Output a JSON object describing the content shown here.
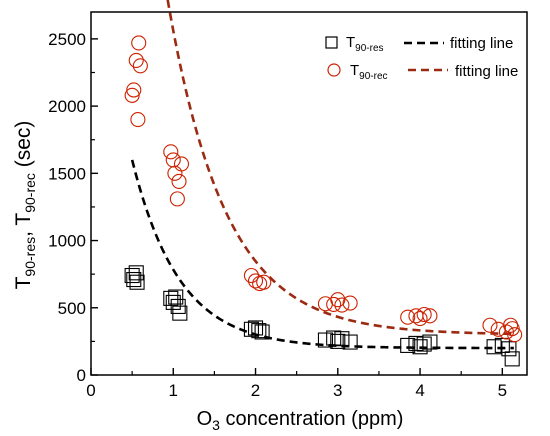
{
  "chart_data": {
    "type": "scatter",
    "xlabel": {
      "main": "O",
      "sub": "3",
      "rest": " concentration (ppm)"
    },
    "ylabel": {
      "p1": "T",
      "s1": "90-res",
      "p2": ", T",
      "s2": "90-rec",
      "p3": " (sec)"
    },
    "xlim": [
      0,
      5.3
    ],
    "ylim": [
      0,
      2700
    ],
    "xticks": [
      0,
      1,
      2,
      3,
      4,
      5
    ],
    "yticks": [
      0,
      500,
      1000,
      1500,
      2000,
      2500
    ],
    "grid": false,
    "legend_position": "top-right",
    "series": [
      {
        "name": "T90-res",
        "legend": {
          "main": "T",
          "sub": "90-res",
          "fit": "fitting line"
        },
        "marker": "square",
        "color": "#000000",
        "fit_color": "#000000",
        "points": [
          [
            0.5,
            740
          ],
          [
            0.52,
            710
          ],
          [
            0.55,
            760
          ],
          [
            0.56,
            690
          ],
          [
            0.97,
            570
          ],
          [
            1.0,
            540
          ],
          [
            1.03,
            580
          ],
          [
            1.06,
            510
          ],
          [
            1.08,
            460
          ],
          [
            1.95,
            340
          ],
          [
            2.0,
            350
          ],
          [
            2.04,
            330
          ],
          [
            2.08,
            320
          ],
          [
            2.85,
            260
          ],
          [
            2.95,
            275
          ],
          [
            3.0,
            250
          ],
          [
            3.05,
            270
          ],
          [
            3.15,
            245
          ],
          [
            3.85,
            220
          ],
          [
            3.95,
            235
          ],
          [
            4.0,
            210
          ],
          [
            4.05,
            230
          ],
          [
            4.12,
            245
          ],
          [
            4.9,
            210
          ],
          [
            5.0,
            220
          ],
          [
            5.08,
            195
          ],
          [
            5.12,
            120
          ]
        ],
        "fit": {
          "a": 200,
          "b": 1400,
          "k": 1.75
        }
      },
      {
        "name": "T90-rec",
        "legend": {
          "main": "T",
          "sub": "90-rec",
          "fit": "fitting line"
        },
        "marker": "circle",
        "color": "#cc2200",
        "fit_color": "#9a2a12",
        "points": [
          [
            0.5,
            2080
          ],
          [
            0.52,
            2120
          ],
          [
            0.55,
            2340
          ],
          [
            0.57,
            1900
          ],
          [
            0.58,
            2470
          ],
          [
            0.6,
            2300
          ],
          [
            0.97,
            1660
          ],
          [
            1.0,
            1600
          ],
          [
            1.02,
            1500
          ],
          [
            1.05,
            1310
          ],
          [
            1.07,
            1440
          ],
          [
            1.1,
            1570
          ],
          [
            1.95,
            740
          ],
          [
            2.0,
            700
          ],
          [
            2.05,
            680
          ],
          [
            2.1,
            690
          ],
          [
            2.85,
            530
          ],
          [
            2.95,
            525
          ],
          [
            3.0,
            560
          ],
          [
            3.05,
            520
          ],
          [
            3.15,
            535
          ],
          [
            3.85,
            430
          ],
          [
            3.95,
            440
          ],
          [
            4.0,
            420
          ],
          [
            4.05,
            450
          ],
          [
            4.12,
            440
          ],
          [
            4.85,
            370
          ],
          [
            4.95,
            340
          ],
          [
            5.05,
            320
          ],
          [
            5.1,
            370
          ],
          [
            5.12,
            345
          ],
          [
            5.15,
            300
          ]
        ],
        "fit": {
          "a": 300,
          "b": 4600,
          "k": 1.42
        }
      }
    ]
  }
}
